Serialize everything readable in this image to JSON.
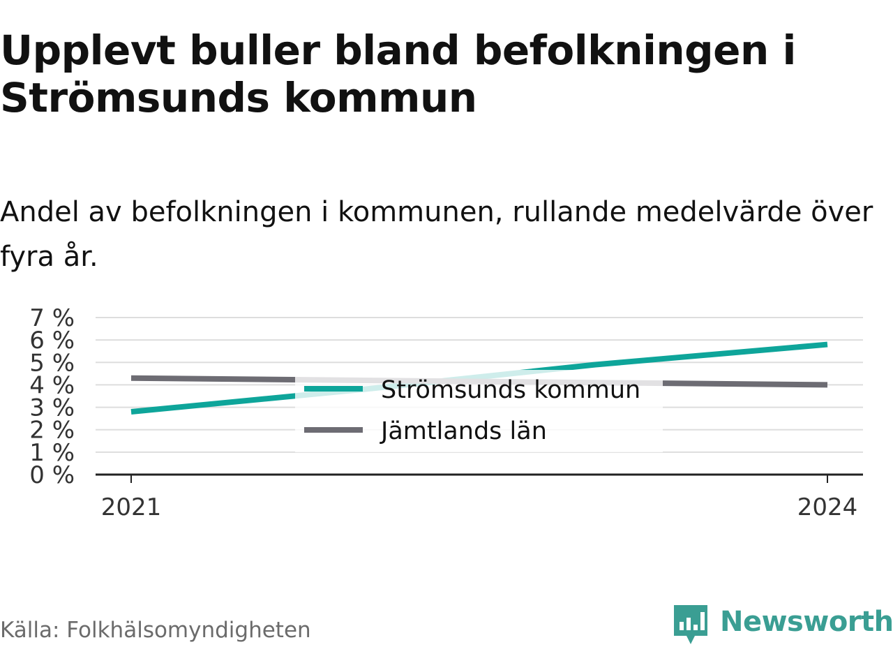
{
  "title": "Upplevt buller bland befolkningen i Strömsunds kommun",
  "subtitle": "Andel av befolkningen i kommunen, rullande medelvärde över fyra år.",
  "source": "Källa: Folkhälsomyndigheten",
  "brand": {
    "name": "Newsworthy",
    "icon": "newsworthy-logo-icon",
    "color": "#3a9e93"
  },
  "chart_data": {
    "type": "line",
    "x": [
      2021,
      2022,
      2023,
      2024
    ],
    "x_ticks": [
      "2021",
      "2024"
    ],
    "y_ticks": [
      "0 %",
      "1 %",
      "2 %",
      "3 %",
      "4 %",
      "5 %",
      "6 %",
      "7 %"
    ],
    "ylim": [
      0,
      7
    ],
    "grid": true,
    "legend_position": "center",
    "series": [
      {
        "name": "Strömsunds kommun",
        "color": "#0ea59a",
        "values": [
          2.8,
          3.8,
          4.9,
          5.8
        ]
      },
      {
        "name": "Jämtlands län",
        "color": "#6d6c73",
        "values": [
          4.3,
          4.2,
          4.1,
          4.0
        ]
      }
    ]
  }
}
